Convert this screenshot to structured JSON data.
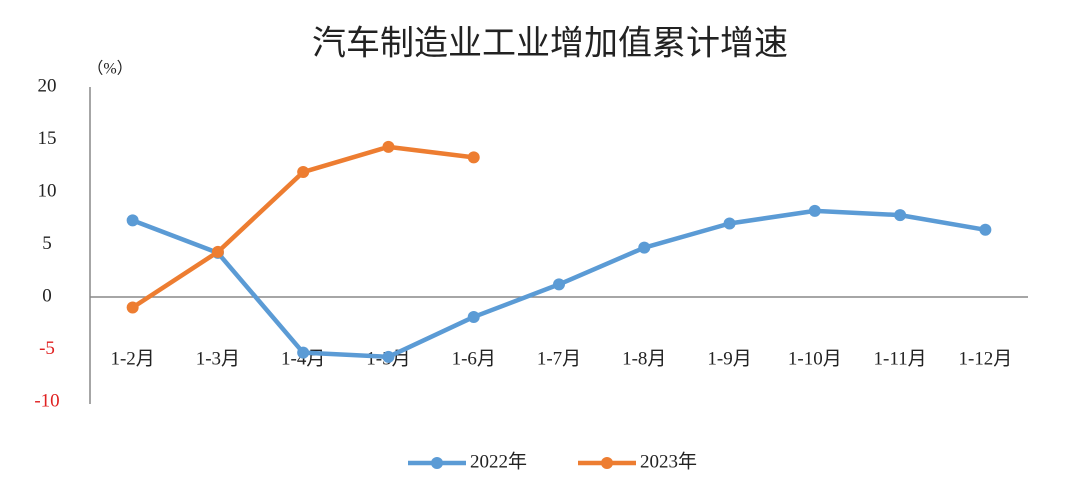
{
  "chart_data": {
    "type": "line",
    "title": "汽车制造业工业增加值累计增速",
    "y_unit_label": "（%）",
    "categories": [
      "1-2月",
      "1-3月",
      "1-4月",
      "1-5月",
      "1-6月",
      "1-7月",
      "1-8月",
      "1-9月",
      "1-10月",
      "1-11月",
      "1-12月"
    ],
    "series": [
      {
        "name": "2022年",
        "color": "#5b9bd5",
        "values": [
          7.3,
          4.2,
          -5.3,
          -5.7,
          -1.9,
          1.2,
          4.7,
          7.0,
          8.2,
          7.8,
          6.4
        ]
      },
      {
        "name": "2023年",
        "color": "#ed7d31",
        "values": [
          -1.0,
          4.3,
          11.9,
          14.3,
          13.3,
          null,
          null,
          null,
          null,
          null,
          null
        ]
      }
    ],
    "ylim": [
      -10,
      20
    ],
    "yticks": [
      20,
      15,
      10,
      5,
      0,
      -5,
      -10
    ],
    "negative_tick_color": "#e02020",
    "grid": false,
    "legend": "bottom"
  }
}
